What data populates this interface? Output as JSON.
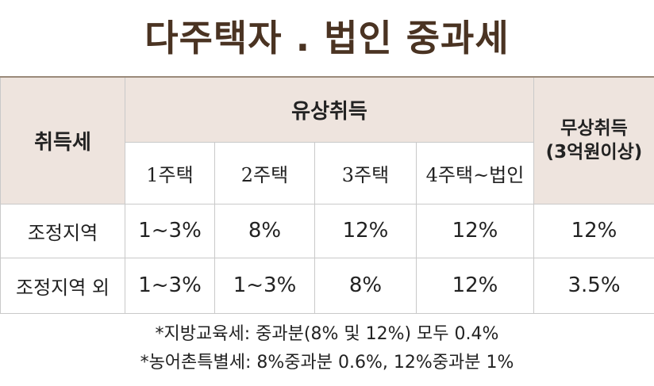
{
  "title": "다주택자 . 법인 중과세",
  "table": {
    "corner": "취득세",
    "paid_group": "유상취득",
    "gift_group_line1": "무상취득",
    "gift_group_line2": "(3억원이상)",
    "subheaders": [
      "1주택",
      "2주택",
      "3주택",
      "4주택~법인"
    ],
    "rows": [
      {
        "label": "조정지역",
        "values": [
          "1~3%",
          "8%",
          "12%",
          "12%",
          "12%"
        ]
      },
      {
        "label": "조정지역 외",
        "values": [
          "1~3%",
          "1~3%",
          "8%",
          "12%",
          "3.5%"
        ]
      }
    ]
  },
  "notes": [
    "*지방교육세: 중과분(8% 및 12%) 모두 0.4%",
    "*농어촌특별세: 8%중과분 0.6%, 12%중과분 1%"
  ],
  "colors": {
    "title": "#4a3322",
    "header_bg": "#eee4de",
    "border": "#c9c9c9"
  }
}
